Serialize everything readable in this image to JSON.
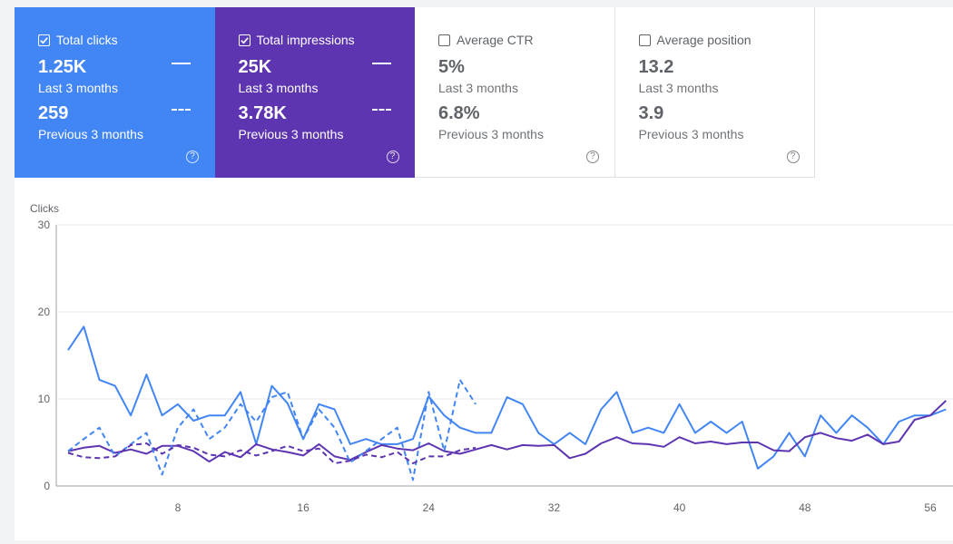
{
  "metrics": [
    {
      "label": "Total clicks",
      "checked": true,
      "value": "1.25K",
      "period": "Last 3 months",
      "prev_value": "259",
      "prev_period": "Previous 3 months"
    },
    {
      "label": "Total impressions",
      "checked": true,
      "value": "25K",
      "period": "Last 3 months",
      "prev_value": "3.78K",
      "prev_period": "Previous 3 months"
    },
    {
      "label": "Average CTR",
      "checked": false,
      "value": "5%",
      "period": "Last 3 months",
      "prev_value": "6.8%",
      "prev_period": "Previous 3 months"
    },
    {
      "label": "Average position",
      "checked": false,
      "value": "13.2",
      "period": "Last 3 months",
      "prev_value": "3.9",
      "prev_period": "Previous 3 months"
    }
  ],
  "help_glyph": "?",
  "colors": {
    "clicks": "#4285f4",
    "impressions": "#5e35b1",
    "grid": "#e8eaed",
    "axis": "#5f6368"
  },
  "chart_data": {
    "type": "line",
    "ylabel": "Clicks",
    "ylim": [
      0,
      30
    ],
    "yticks": [
      0,
      10,
      20,
      30
    ],
    "xticks": [
      8,
      16,
      24,
      32,
      40,
      48,
      56
    ],
    "series": [
      {
        "style": "solid",
        "color": "#4285f4",
        "x": [
          1,
          2,
          3,
          4,
          5,
          6,
          7,
          8,
          9,
          10,
          11,
          12,
          13,
          14,
          15,
          16,
          17,
          18,
          19,
          20,
          21,
          22,
          23,
          24,
          25,
          26,
          27,
          28,
          29,
          30,
          31,
          32,
          33,
          34,
          35,
          36,
          37,
          38,
          39,
          40,
          41,
          42,
          43,
          44,
          45,
          46,
          47,
          48,
          49,
          50,
          51,
          52,
          53,
          54,
          55,
          56,
          57
        ],
        "values": [
          15.6,
          18.3,
          12.2,
          11.5,
          8.1,
          12.8,
          8.1,
          9.4,
          7.5,
          8.1,
          8.1,
          10.8,
          4.8,
          11.5,
          9.5,
          5.4,
          9.4,
          8.8,
          4.8,
          5.4,
          4.8,
          4.8,
          5.4,
          10.3,
          8.1,
          6.7,
          6.1,
          6.1,
          10.2,
          9.4,
          6.1,
          4.8,
          6.1,
          4.8,
          8.8,
          10.8,
          6.1,
          6.7,
          6.1,
          9.4,
          6.1,
          7.4,
          6.1,
          7.4,
          2.0,
          3.4,
          6.1,
          3.4,
          8.1,
          6.1,
          8.1,
          6.7,
          4.8,
          7.4,
          8.1,
          8.1,
          8.8
        ]
      },
      {
        "style": "solid",
        "color": "#5e35b1",
        "x": [
          1,
          2,
          3,
          4,
          5,
          6,
          7,
          8,
          9,
          10,
          11,
          12,
          13,
          14,
          15,
          16,
          17,
          18,
          19,
          20,
          21,
          22,
          23,
          24,
          25,
          26,
          27,
          28,
          29,
          30,
          31,
          32,
          33,
          34,
          35,
          36,
          37,
          38,
          39,
          40,
          41,
          42,
          43,
          44,
          45,
          46,
          47,
          48,
          49,
          50,
          51,
          52,
          53,
          54,
          55,
          56,
          57
        ],
        "values": [
          4.0,
          4.4,
          4.6,
          3.8,
          4.2,
          3.7,
          4.6,
          4.6,
          4.0,
          2.8,
          3.9,
          3.3,
          4.8,
          4.2,
          3.9,
          3.5,
          4.8,
          3.4,
          3.0,
          3.9,
          4.7,
          4.3,
          4.1,
          4.9,
          4.0,
          3.7,
          4.2,
          4.7,
          4.2,
          4.7,
          4.6,
          4.7,
          3.2,
          3.7,
          4.9,
          5.6,
          4.9,
          4.8,
          4.5,
          5.6,
          4.9,
          5.1,
          4.8,
          5.0,
          5.0,
          4.1,
          4.0,
          5.6,
          6.1,
          5.5,
          5.2,
          5.9,
          4.8,
          5.1,
          7.6,
          8.1,
          9.8
        ]
      },
      {
        "style": "dashed",
        "color": "#4285f4",
        "x": [
          1,
          2,
          3,
          4,
          5,
          6,
          7,
          8,
          9,
          10,
          11,
          12,
          13,
          14,
          15,
          16,
          17,
          18,
          19,
          20,
          21,
          22,
          23,
          24,
          25,
          26,
          27
        ],
        "values": [
          4.0,
          5.4,
          6.7,
          3.4,
          4.8,
          6.1,
          1.3,
          6.7,
          8.8,
          5.4,
          6.7,
          9.4,
          7.4,
          10.2,
          10.8,
          5.4,
          8.8,
          6.7,
          2.7,
          4.0,
          5.4,
          6.7,
          0.7,
          10.8,
          4.0,
          12.2,
          9.4
        ]
      },
      {
        "style": "dashed",
        "color": "#5e35b1",
        "x": [
          1,
          2,
          3,
          4,
          5,
          6,
          7,
          8,
          9,
          10,
          11,
          12,
          13,
          14,
          15,
          16,
          17,
          18,
          19,
          20,
          21,
          22,
          23,
          24,
          25,
          26,
          27
        ],
        "values": [
          3.8,
          3.3,
          3.2,
          3.4,
          4.7,
          4.9,
          3.7,
          4.7,
          4.4,
          3.6,
          3.4,
          4.1,
          3.5,
          4.0,
          4.6,
          4.0,
          4.3,
          2.6,
          2.9,
          3.6,
          3.3,
          3.9,
          2.6,
          3.4,
          3.4,
          4.1,
          4.4
        ]
      }
    ]
  }
}
